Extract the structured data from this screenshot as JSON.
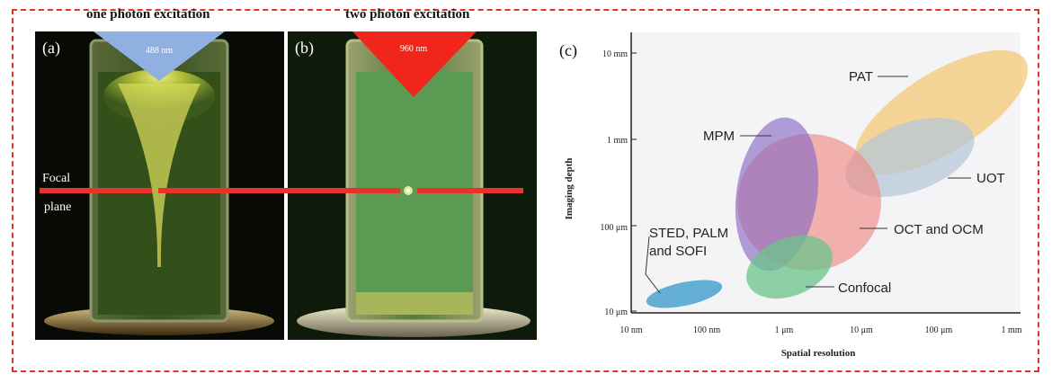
{
  "panel_a": {
    "heading": "one photon excitation",
    "label": "(a)",
    "wavelength": "488 nm",
    "focal_line1": "Focal",
    "focal_line2": "plane",
    "colors": {
      "beam": "#8fb0e0",
      "focal_line": "#e8322a"
    }
  },
  "panel_b": {
    "heading": "two photon excitation",
    "label": "(b)",
    "wavelength": "960 nm",
    "colors": {
      "beam": "#f0251c"
    }
  },
  "panel_c": {
    "label": "(c)",
    "x_axis_label": "Spatial resolution",
    "y_axis_label": "Imaging depth",
    "x_ticks": [
      "10 nm",
      "100 nm",
      "1 μm",
      "10 μm",
      "100 μm",
      "1 mm"
    ],
    "y_ticks": [
      "10 μm",
      "100 μm",
      "1 mm",
      "10 mm"
    ],
    "regions": [
      {
        "name": "PAT",
        "color": "#f2c66d"
      },
      {
        "name": "UOT",
        "color": "#b8c8d8"
      },
      {
        "name": "MPM",
        "color": "#9a7ccc"
      },
      {
        "name": "OCT and OCM",
        "color": "#ef8a86"
      },
      {
        "name": "Confocal",
        "color": "#6cc48a"
      },
      {
        "name_line1": "STED, PALM",
        "name_line2": "and SOFI",
        "color": "#4aa3cf"
      }
    ]
  }
}
